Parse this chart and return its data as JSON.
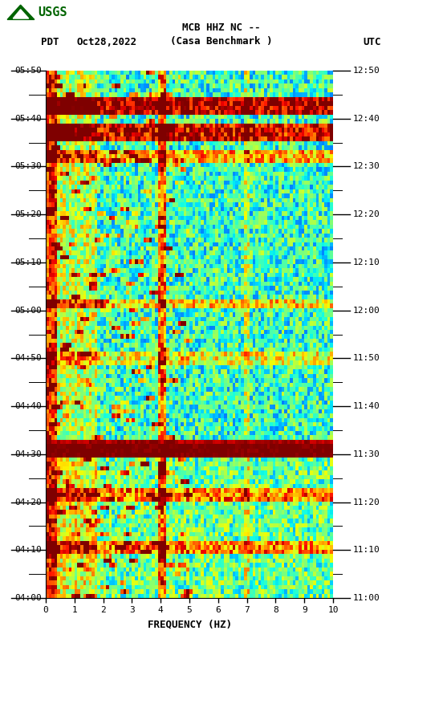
{
  "title_line1": "MCB HHZ NC --",
  "title_line2": "(Casa Benchmark )",
  "left_label": "PDT",
  "date_label": "Oct28,2022",
  "right_label": "UTC",
  "left_times": [
    "04:00",
    "04:10",
    "04:20",
    "04:30",
    "04:40",
    "04:50",
    "05:00",
    "05:10",
    "05:20",
    "05:30",
    "05:40",
    "05:50"
  ],
  "right_times": [
    "11:00",
    "11:10",
    "11:20",
    "11:30",
    "11:40",
    "11:50",
    "12:00",
    "12:10",
    "12:20",
    "12:30",
    "12:40",
    "12:50"
  ],
  "freq_min": 0,
  "freq_max": 10,
  "freq_ticks": [
    0,
    1,
    2,
    3,
    4,
    5,
    6,
    7,
    8,
    9,
    10
  ],
  "xlabel": "FREQUENCY (HZ)",
  "n_time_bins": 120,
  "n_freq_bins": 100,
  "random_seed": 42,
  "bg_color": "white",
  "colormap": "jet",
  "fig_width": 5.52,
  "fig_height": 8.92,
  "usgs_logo_color": "#006400"
}
